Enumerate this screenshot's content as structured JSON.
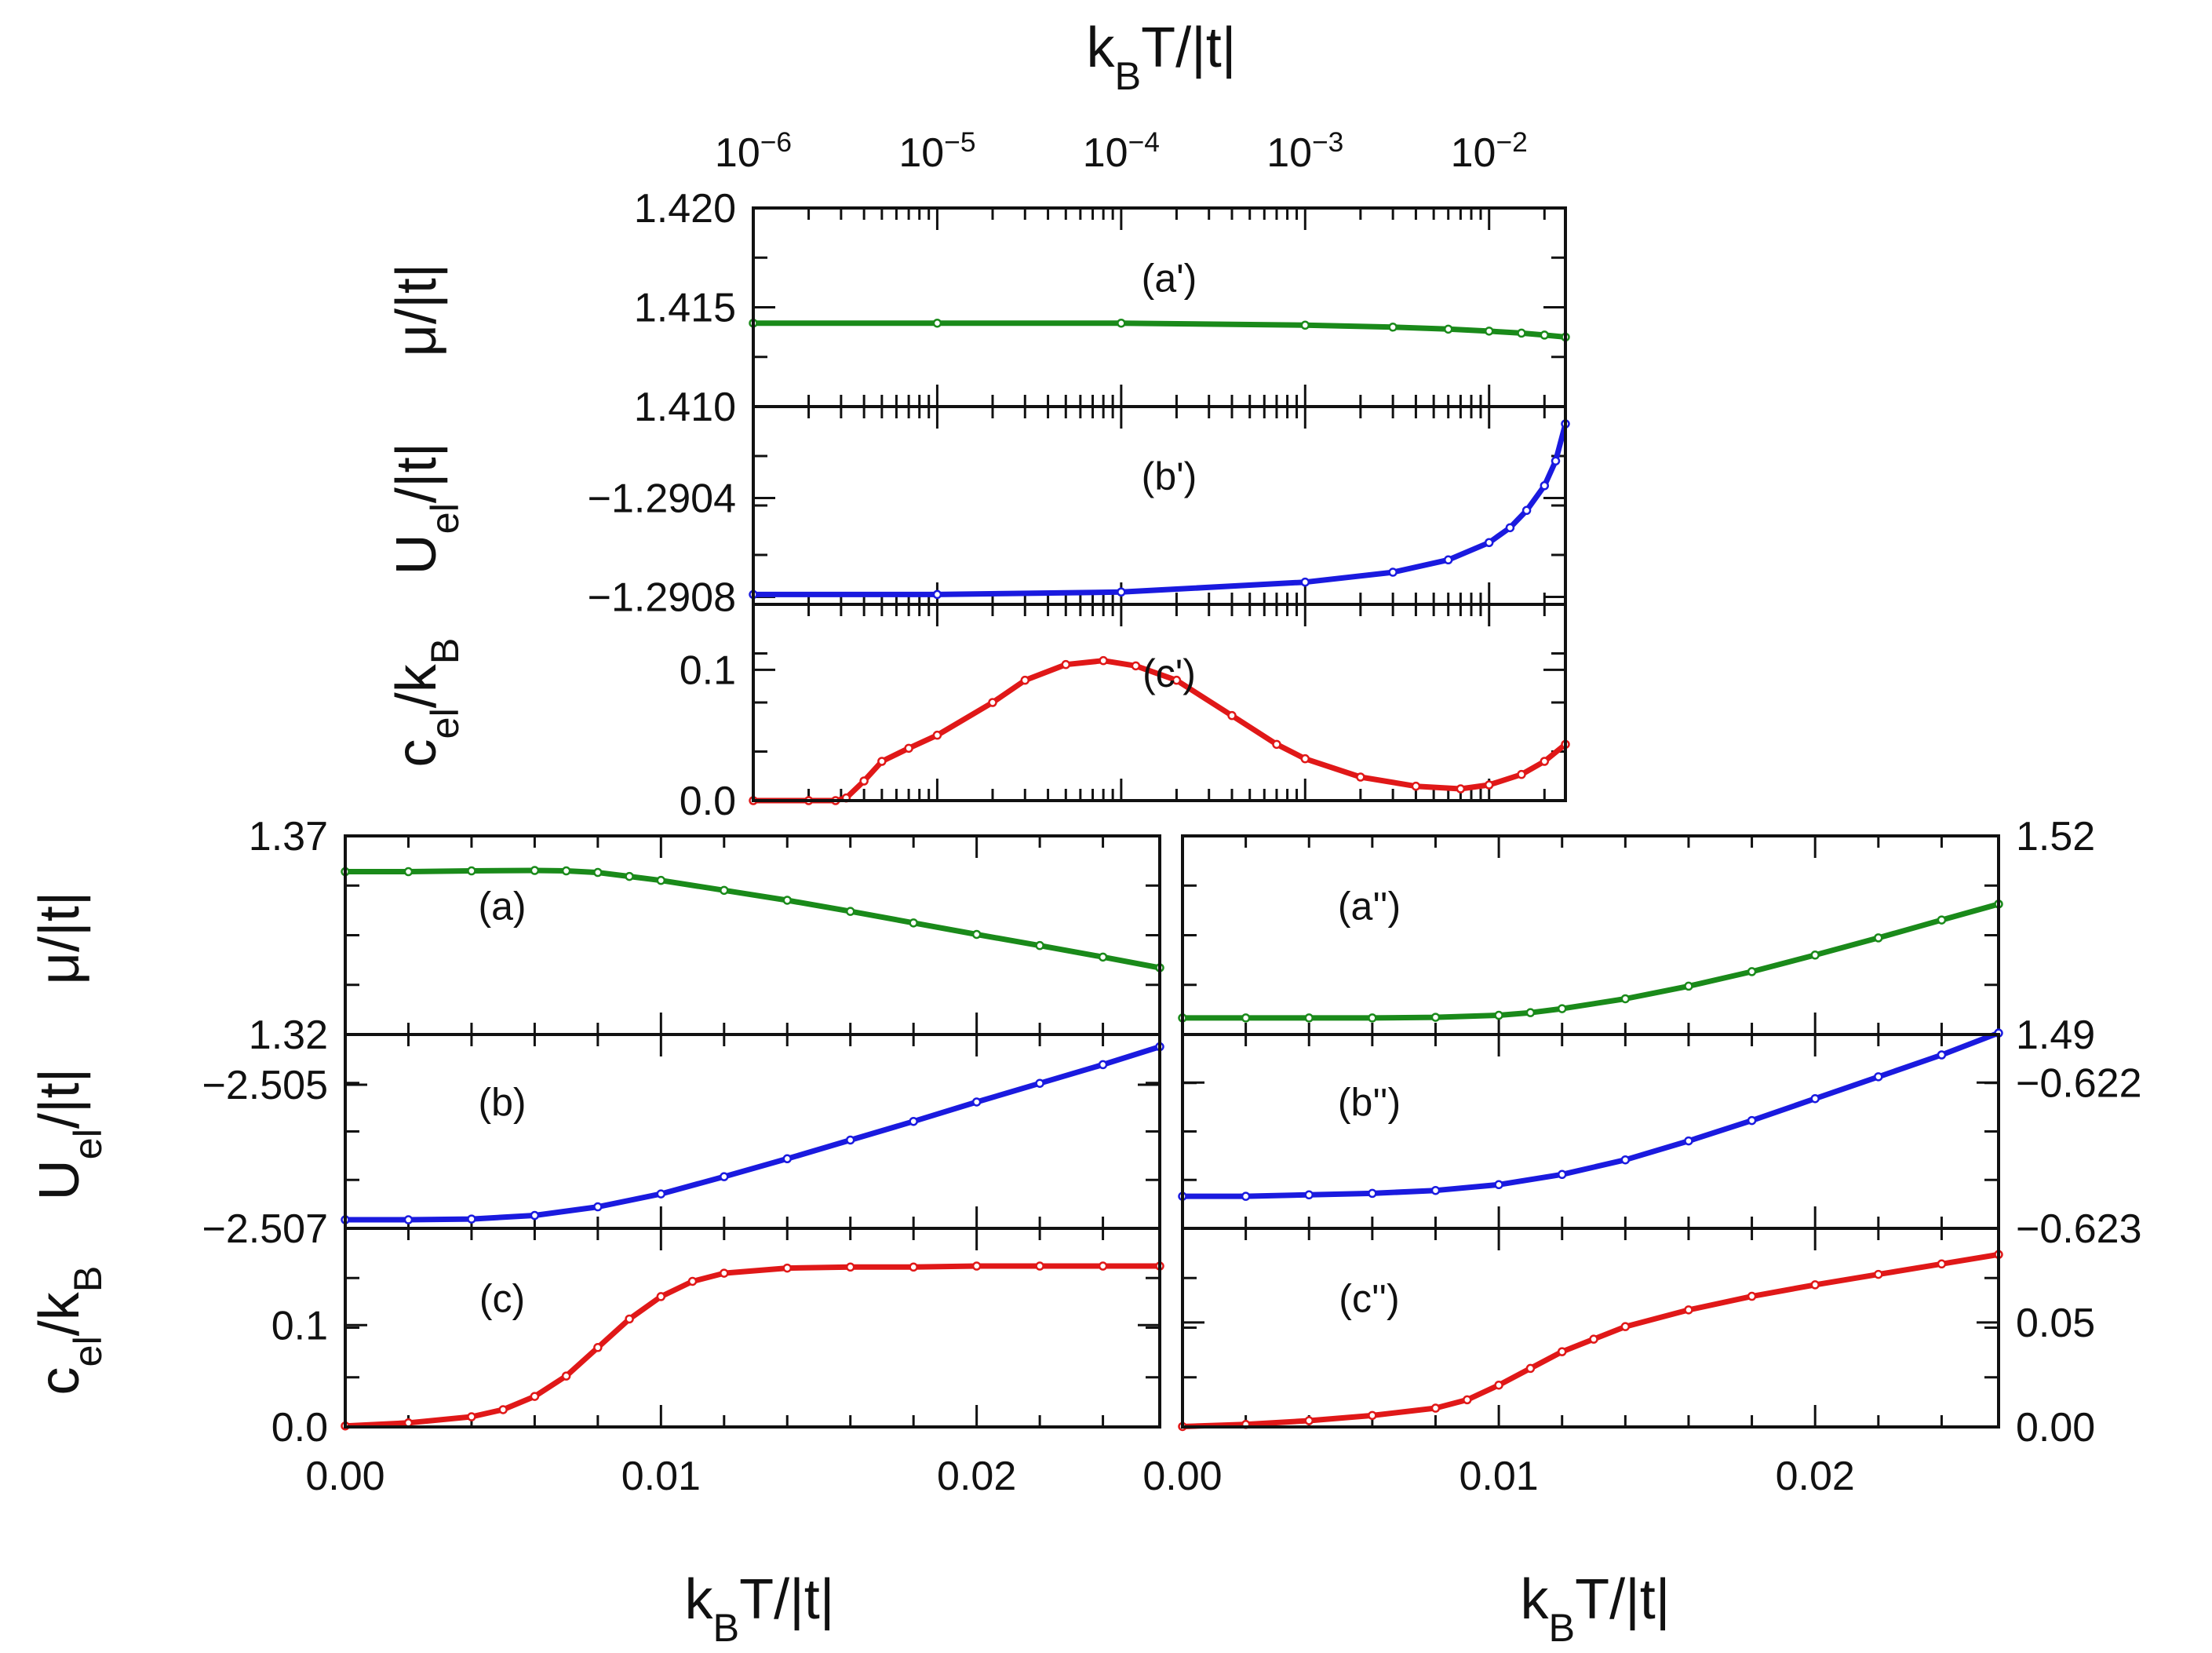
{
  "figure": {
    "top_axis_title": {
      "main": "k",
      "sub": "B",
      "rest": "T/|t|"
    },
    "bottom_left_axis_title": {
      "main": "k",
      "sub": "B",
      "rest": "T/|t|"
    },
    "bottom_right_axis_title": {
      "main": "k",
      "sub": "B",
      "rest": "T/|t|"
    },
    "ylabels_top": [
      {
        "main": "μ/|t|",
        "sub": "",
        "rest": ""
      },
      {
        "main": "U",
        "sub": "el",
        "rest": "/|t|"
      },
      {
        "main": "c",
        "sub": "el",
        "rest": "/k",
        "sub2": "B"
      }
    ],
    "ylabels_bottom": [
      {
        "main": "μ/|t|",
        "sub": "",
        "rest": ""
      },
      {
        "main": "U",
        "sub": "el",
        "rest": "/|t|"
      },
      {
        "main": "c",
        "sub": "el",
        "rest": "/k",
        "sub2": "B"
      }
    ]
  },
  "colors": {
    "mu": "#1a8a1a",
    "u": "#1a1adf",
    "c": "#e01818",
    "axis": "#111111"
  },
  "chart_data": [
    {
      "id": "top",
      "type": "line",
      "xscale": "log",
      "xlim": [
        1e-06,
        0.026
      ],
      "xlabel": "kBT/|t|",
      "x_ticks": [
        {
          "value": 1e-06,
          "base": "10",
          "exp": "−6"
        },
        {
          "value": 1e-05,
          "base": "10",
          "exp": "−5"
        },
        {
          "value": 0.0001,
          "base": "10",
          "exp": "−4"
        },
        {
          "value": 0.001,
          "base": "10",
          "exp": "−3"
        },
        {
          "value": 0.01,
          "base": "10",
          "exp": "−2"
        }
      ],
      "panels": [
        {
          "label": "(a')",
          "ylabel": "μ/|t|",
          "color": "mu",
          "ylim": [
            1.41,
            1.42
          ],
          "yticks": [
            {
              "value": 1.42,
              "text": "1.420"
            },
            {
              "value": 1.415,
              "text": "1.415"
            },
            {
              "value": 1.41,
              "text": "1.410"
            }
          ],
          "x": [
            1e-06,
            1e-05,
            0.0001,
            0.001,
            0.003,
            0.006,
            0.01,
            0.015,
            0.02,
            0.026
          ],
          "y": [
            1.4142,
            1.4142,
            1.4142,
            1.4141,
            1.414,
            1.4139,
            1.4138,
            1.4137,
            1.4136,
            1.4135
          ]
        },
        {
          "label": "(b')",
          "ylabel": "Uel/|t|",
          "color": "u",
          "ylim": [
            -1.29083,
            -1.29003
          ],
          "yticks": [
            {
              "value": -1.2904,
              "text": "−1.2904"
            },
            {
              "value": -1.2908,
              "text": "−1.2908"
            }
          ],
          "x": [
            1e-06,
            1e-05,
            0.0001,
            0.001,
            0.003,
            0.006,
            0.01,
            0.013,
            0.016,
            0.02,
            0.023,
            0.026
          ],
          "y": [
            -1.29079,
            -1.29079,
            -1.29078,
            -1.29074,
            -1.2907,
            -1.29065,
            -1.29058,
            -1.29052,
            -1.29045,
            -1.29035,
            -1.29025,
            -1.2901
          ]
        },
        {
          "label": "(c')",
          "ylabel": "cel/kB",
          "color": "c",
          "ylim": [
            0,
            0.15
          ],
          "yticks": [
            {
              "value": 0.1,
              "text": "0.1"
            },
            {
              "value": 0.0,
              "text": "0.0"
            }
          ],
          "x": [
            1e-06,
            2e-06,
            2.8e-06,
            3.2e-06,
            4e-06,
            5e-06,
            7e-06,
            1e-05,
            2e-05,
            3e-05,
            5e-05,
            8e-05,
            0.00012,
            0.0002,
            0.0004,
            0.0007,
            0.001,
            0.002,
            0.004,
            0.007,
            0.01,
            0.015,
            0.02,
            0.026
          ],
          "y": [
            0.0,
            0.0,
            0.0,
            0.002,
            0.015,
            0.03,
            0.04,
            0.05,
            0.075,
            0.092,
            0.104,
            0.107,
            0.103,
            0.092,
            0.065,
            0.043,
            0.032,
            0.018,
            0.011,
            0.009,
            0.012,
            0.02,
            0.03,
            0.043
          ]
        }
      ]
    },
    {
      "id": "bottom-left",
      "type": "line",
      "xscale": "linear",
      "xlim": [
        0,
        0.0258
      ],
      "xlabel": "kBT/|t|",
      "x_ticks": [
        {
          "value": 0.0,
          "text": "0.00"
        },
        {
          "value": 0.01,
          "text": "0.01"
        },
        {
          "value": 0.02,
          "text": "0.02"
        }
      ],
      "panels": [
        {
          "label": "(a)",
          "ylabel": "μ/|t|",
          "color": "mu",
          "ylim": [
            1.32,
            1.37
          ],
          "yticks": [
            {
              "value": 1.37,
              "text": "1.37"
            },
            {
              "value": 1.32,
              "text": "1.32"
            }
          ],
          "x": [
            0,
            0.002,
            0.004,
            0.006,
            0.007,
            0.008,
            0.009,
            0.01,
            0.012,
            0.014,
            0.016,
            0.018,
            0.02,
            0.022,
            0.024,
            0.0258
          ],
          "y": [
            1.361,
            1.361,
            1.3612,
            1.3613,
            1.3612,
            1.3608,
            1.3598,
            1.3588,
            1.3563,
            1.3538,
            1.351,
            1.3481,
            1.3452,
            1.3424,
            1.3395,
            1.3368
          ]
        },
        {
          "label": "(b)",
          "ylabel": "Uel/|t|",
          "color": "u",
          "ylim": [
            -2.507,
            -2.5043
          ],
          "yticks": [
            {
              "value": -2.505,
              "text": "−2.505"
            },
            {
              "value": -2.507,
              "text": "−2.507"
            }
          ],
          "x": [
            0,
            0.002,
            0.004,
            0.006,
            0.008,
            0.01,
            0.012,
            0.014,
            0.016,
            0.018,
            0.02,
            0.022,
            0.024,
            0.0258
          ],
          "y": [
            -2.50688,
            -2.50688,
            -2.50687,
            -2.50682,
            -2.5067,
            -2.50652,
            -2.50628,
            -2.50603,
            -2.50577,
            -2.50551,
            -2.50524,
            -2.50498,
            -2.50472,
            -2.50447
          ]
        },
        {
          "label": "(c)",
          "ylabel": "cel/kB",
          "color": "c",
          "ylim": [
            0,
            0.195
          ],
          "yticks": [
            {
              "value": 0.1,
              "text": "0.1"
            },
            {
              "value": 0.0,
              "text": "0.0"
            }
          ],
          "x": [
            0,
            0.002,
            0.004,
            0.005,
            0.006,
            0.007,
            0.008,
            0.009,
            0.01,
            0.011,
            0.012,
            0.014,
            0.016,
            0.018,
            0.02,
            0.022,
            0.024,
            0.0258
          ],
          "y": [
            0.001,
            0.004,
            0.01,
            0.017,
            0.03,
            0.05,
            0.078,
            0.106,
            0.128,
            0.143,
            0.151,
            0.156,
            0.157,
            0.157,
            0.158,
            0.158,
            0.158,
            0.158
          ]
        }
      ]
    },
    {
      "id": "bottom-right",
      "type": "line",
      "xscale": "linear",
      "xlim": [
        0,
        0.0258
      ],
      "xlabel": "kBT/|t|",
      "x_ticks": [
        {
          "value": 0.0,
          "text": "0.00"
        },
        {
          "value": 0.01,
          "text": "0.01"
        },
        {
          "value": 0.02,
          "text": "0.02"
        }
      ],
      "panels": [
        {
          "label": "(a'')",
          "ylabel": "μ/|t|",
          "color": "mu",
          "ylim": [
            1.49,
            1.52
          ],
          "yticks": [
            {
              "value": 1.52,
              "text": "1.52"
            },
            {
              "value": 1.49,
              "text": "1.49"
            }
          ],
          "x": [
            0,
            0.002,
            0.004,
            0.006,
            0.008,
            0.01,
            0.011,
            0.012,
            0.014,
            0.016,
            0.018,
            0.02,
            0.022,
            0.024,
            0.0258
          ],
          "y": [
            1.4925,
            1.4925,
            1.4925,
            1.4925,
            1.4926,
            1.4929,
            1.4933,
            1.4939,
            1.4954,
            1.4973,
            1.4995,
            1.502,
            1.5046,
            1.5073,
            1.5097
          ]
        },
        {
          "label": "(b'')",
          "ylabel": "Uel/|t|",
          "color": "u",
          "ylim": [
            -0.623,
            -0.62167
          ],
          "yticks": [
            {
              "value": -0.622,
              "text": "−0.622"
            },
            {
              "value": -0.623,
              "text": "−0.623"
            }
          ],
          "x": [
            0,
            0.002,
            0.004,
            0.006,
            0.008,
            0.01,
            0.012,
            0.014,
            0.016,
            0.018,
            0.02,
            0.022,
            0.024,
            0.0258
          ],
          "y": [
            -0.62278,
            -0.62278,
            -0.62277,
            -0.62276,
            -0.62274,
            -0.6227,
            -0.62263,
            -0.62253,
            -0.6224,
            -0.62226,
            -0.62211,
            -0.62196,
            -0.62181,
            -0.62166
          ]
        },
        {
          "label": "(c'')",
          "ylabel": "cel/kB",
          "color": "c",
          "ylim": [
            0,
            0.095
          ],
          "yticks": [
            {
              "value": 0.05,
              "text": "0.05"
            },
            {
              "value": 0.0,
              "text": "0.00"
            }
          ],
          "x": [
            0,
            0.002,
            0.004,
            0.006,
            0.008,
            0.009,
            0.01,
            0.011,
            0.012,
            0.013,
            0.014,
            0.016,
            0.018,
            0.02,
            0.022,
            0.024,
            0.0258
          ],
          "y": [
            0.0002,
            0.0012,
            0.003,
            0.0055,
            0.009,
            0.013,
            0.02,
            0.028,
            0.036,
            0.042,
            0.048,
            0.056,
            0.0625,
            0.068,
            0.073,
            0.078,
            0.0825
          ]
        }
      ]
    }
  ]
}
